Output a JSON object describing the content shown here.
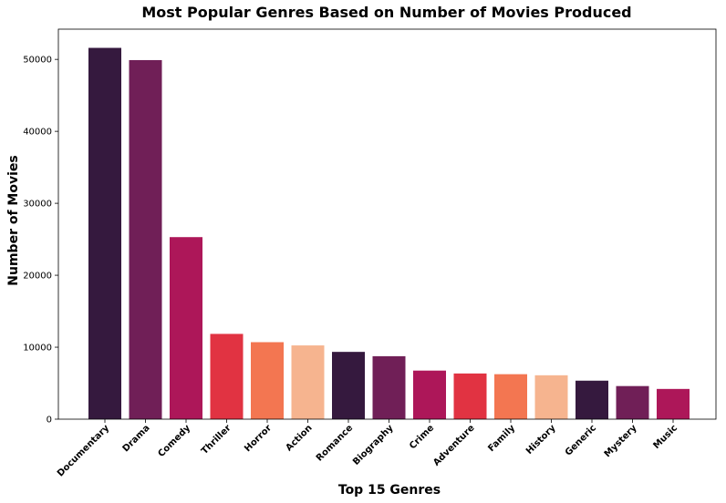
{
  "chart_data": {
    "type": "bar",
    "title": "Most Popular Genres Based on Number of Movies Produced",
    "xlabel": "Top 15 Genres",
    "ylabel": "Number of Movies",
    "categories": [
      "Documentary",
      "Drama",
      "Comedy",
      "Thriller",
      "Horror",
      "Action",
      "Romance",
      "Biography",
      "Crime",
      "Adventure",
      "Family",
      "History",
      "Generic",
      "Mystery",
      "Music"
    ],
    "values": [
      51600,
      49900,
      25300,
      11850,
      10700,
      10250,
      9350,
      8750,
      6750,
      6350,
      6250,
      6100,
      5350,
      4600,
      4200
    ],
    "colors": [
      "#35193e",
      "#701f57",
      "#ad1759",
      "#e13342",
      "#f37651",
      "#f6b48f",
      "#35193e",
      "#701f57",
      "#ad1759",
      "#e13342",
      "#f37651",
      "#f6b48f",
      "#35193e",
      "#701f57",
      "#ad1759"
    ],
    "ylim": [
      0,
      54200
    ],
    "yticks": [
      0,
      10000,
      20000,
      30000,
      40000,
      50000
    ],
    "grid": false,
    "legend": "none"
  }
}
